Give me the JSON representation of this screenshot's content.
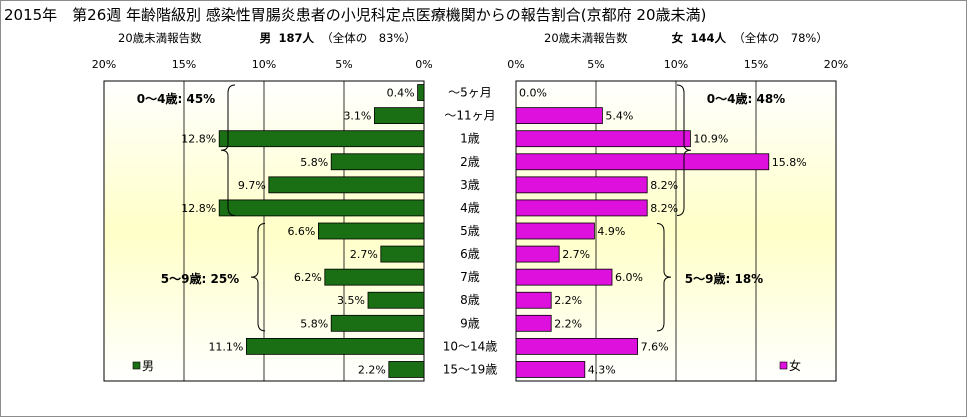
{
  "title": "2015年　第26週 年齢階級別 感染性胃腸炎患者の小児科定点医療機関からの報告割合(京都府 20歳未満)",
  "left_panel": {
    "label": "20歳未満報告数",
    "gender": "男",
    "count": "187人",
    "overall_share": "（全体の　83%）"
  },
  "right_panel": {
    "label": "20歳未満報告数",
    "gender": "女",
    "count": "144人",
    "overall_share": "（全体の　78%）"
  },
  "colors": {
    "male": "#1a6e14",
    "female": "#dd10dd",
    "plot_bg_top": "#ffffff",
    "plot_bg_mid": "#ffffc8"
  },
  "chart_data": [
    {
      "type": "bar",
      "orientation": "horizontal",
      "direction": "right-to-left",
      "series": [
        {
          "name": "男",
          "values": [
            0.4,
            3.1,
            12.8,
            5.8,
            9.7,
            12.8,
            6.6,
            2.7,
            6.2,
            3.5,
            5.8,
            11.1,
            2.2
          ]
        }
      ],
      "data_labels": [
        "0.4%",
        "3.1%",
        "12.8%",
        "5.8%",
        "9.7%",
        "12.8%",
        "6.6%",
        "2.7%",
        "6.2%",
        "3.5%",
        "5.8%",
        "11.1%",
        "2.2%"
      ],
      "xlim": [
        0,
        20
      ],
      "x_ticks": [
        "20%",
        "15%",
        "10%",
        "5%",
        "0%"
      ],
      "legend": "男",
      "legend_position": "bottom-left",
      "grid": true,
      "annotations": [
        {
          "text": "0～4歳: 45%",
          "range": [
            "～5ヶ月",
            "4歳"
          ]
        },
        {
          "text": "5～9歳: 25%",
          "range": [
            "5歳",
            "9歳"
          ]
        }
      ]
    },
    {
      "type": "bar",
      "orientation": "horizontal",
      "direction": "left-to-right",
      "series": [
        {
          "name": "女",
          "values": [
            0.0,
            5.4,
            10.9,
            15.8,
            8.2,
            8.2,
            4.9,
            2.7,
            6.0,
            2.2,
            2.2,
            7.6,
            4.3
          ]
        }
      ],
      "data_labels": [
        "0.0%",
        "5.4%",
        "10.9%",
        "15.8%",
        "8.2%",
        "8.2%",
        "4.9%",
        "2.7%",
        "6.0%",
        "2.2%",
        "2.2%",
        "7.6%",
        "4.3%"
      ],
      "xlim": [
        0,
        20
      ],
      "x_ticks": [
        "0%",
        "5%",
        "10%",
        "15%",
        "20%"
      ],
      "legend": "女",
      "legend_position": "bottom-right",
      "grid": true,
      "annotations": [
        {
          "text": "0～4歳: 48%",
          "range": [
            "～5ヶ月",
            "4歳"
          ]
        },
        {
          "text": "5～9歳: 18%",
          "range": [
            "5歳",
            "9歳"
          ]
        }
      ]
    }
  ],
  "categories": [
    "～5ヶ月",
    "～11ヶ月",
    "1歳",
    "2歳",
    "3歳",
    "4歳",
    "5歳",
    "6歳",
    "7歳",
    "8歳",
    "9歳",
    "10～14歳",
    "15～19歳"
  ]
}
